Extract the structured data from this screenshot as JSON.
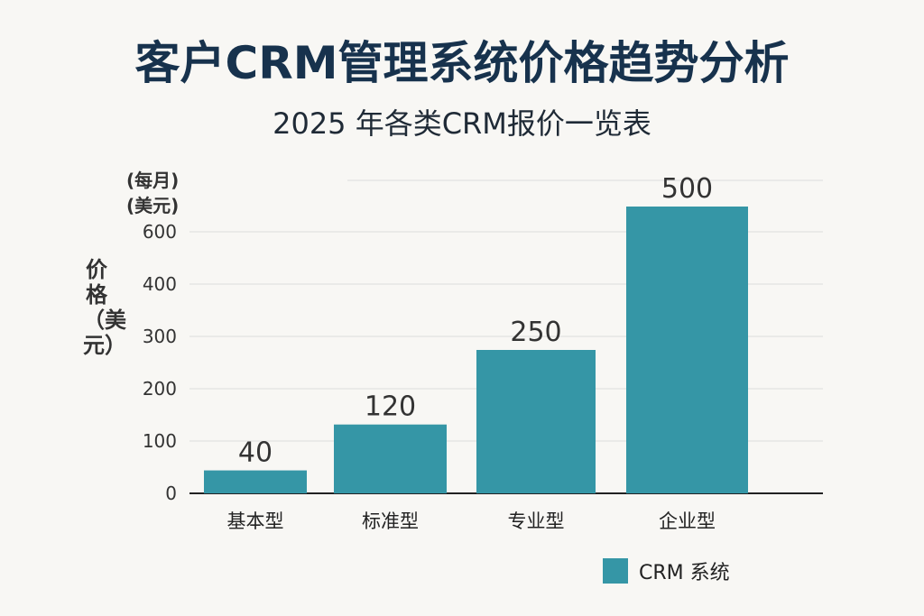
{
  "chart_data": {
    "type": "bar",
    "title": "客户CRM管理系统价格趋势分析",
    "subtitle": "2025 年各类CRM报价一览表",
    "ylabel": "价格（美元）",
    "yunit": [
      "(每月)",
      "(美元)"
    ],
    "categories": [
      "基本型",
      "标准型",
      "专业型",
      "企业型"
    ],
    "values": [
      40,
      120,
      250,
      500
    ],
    "yticks": [
      "0",
      "100",
      "200",
      "300",
      "400",
      "600"
    ],
    "ylim": [
      0,
      500
    ],
    "grid": true,
    "legend_position": "bottom-right",
    "series": [
      {
        "name": "CRM 系统",
        "values": [
          40,
          120,
          250,
          500
        ],
        "color": "#3596a6"
      }
    ]
  }
}
